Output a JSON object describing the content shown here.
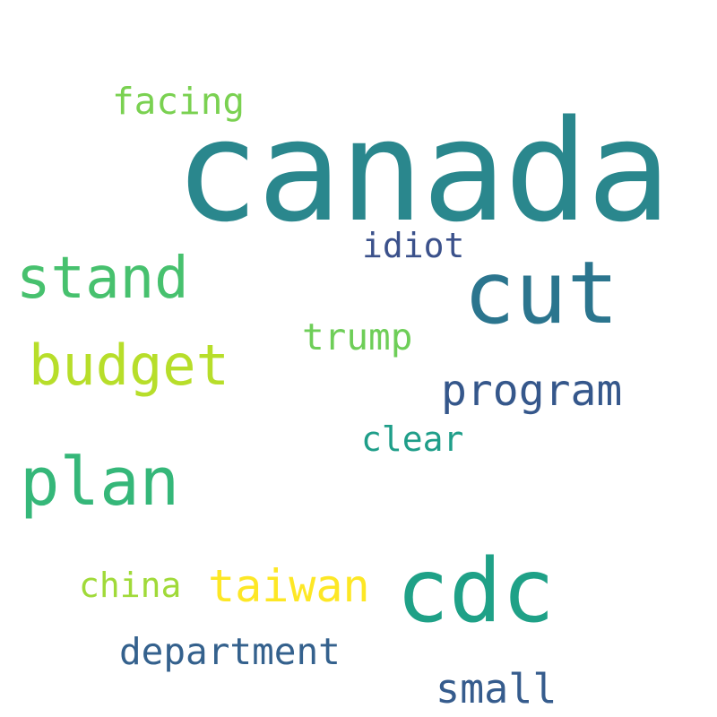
{
  "words": {
    "canada": {
      "text": "canada",
      "color": "#2a878d"
    },
    "cut": {
      "text": "cut",
      "color": "#2b758e"
    },
    "cdc": {
      "text": "cdc",
      "color": "#1fa187"
    },
    "plan": {
      "text": "plan",
      "color": "#35b779"
    },
    "stand": {
      "text": "stand",
      "color": "#47c16e"
    },
    "budget": {
      "text": "budget",
      "color": "#b7de2a"
    },
    "program": {
      "text": "program",
      "color": "#35578b"
    },
    "taiwan": {
      "text": "taiwan",
      "color": "#fde725"
    },
    "department": {
      "text": "department",
      "color": "#34618d"
    },
    "small": {
      "text": "small",
      "color": "#365c8d"
    },
    "facing": {
      "text": "facing",
      "color": "#7ad151"
    },
    "trump": {
      "text": "trump",
      "color": "#6ece58"
    },
    "idiot": {
      "text": "idiot",
      "color": "#3b518b"
    },
    "clear": {
      "text": "clear",
      "color": "#1f9e89"
    },
    "china": {
      "text": "china",
      "color": "#a0da39"
    }
  }
}
